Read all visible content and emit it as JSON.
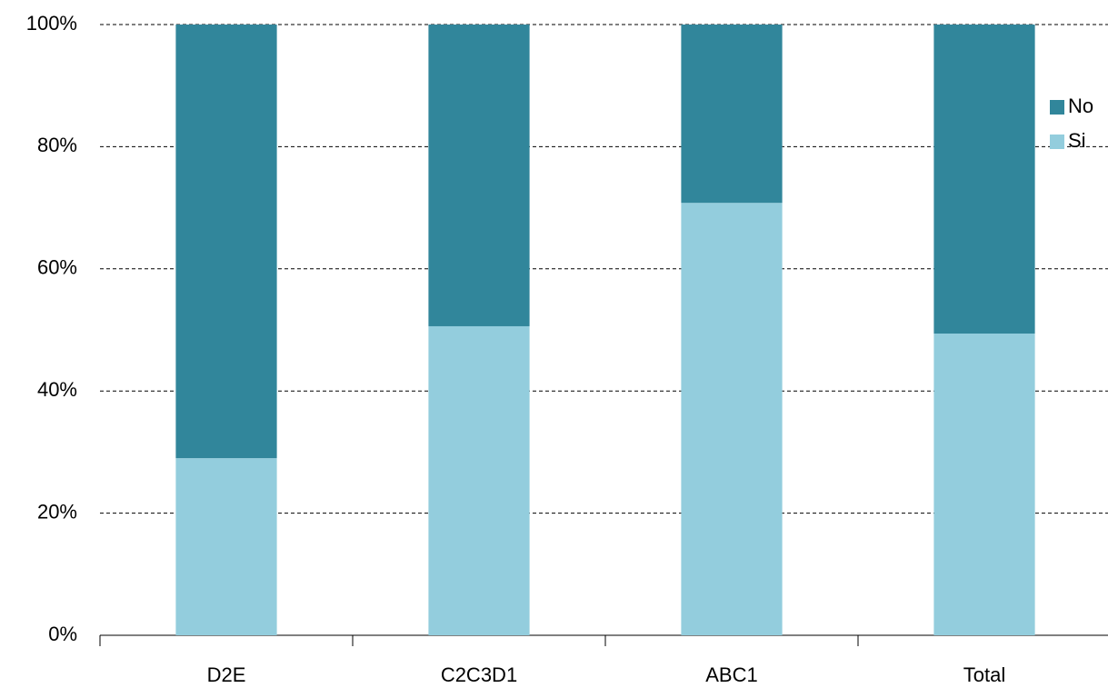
{
  "chart_data": {
    "type": "stacked_bar",
    "categories": [
      "D2E",
      "C2C3D1",
      "ABC1",
      "Total"
    ],
    "series": [
      {
        "name": "Si",
        "color": "#93cddd",
        "values": [
          29.0,
          50.6,
          70.8,
          49.4
        ]
      },
      {
        "name": "No",
        "color": "#31869b",
        "values": [
          71.0,
          49.4,
          29.2,
          50.6
        ]
      }
    ],
    "ylim": [
      0,
      100
    ],
    "yticks": [
      {
        "value": 0,
        "label": "0%"
      },
      {
        "value": 20,
        "label": "20%"
      },
      {
        "value": 40,
        "label": "40%"
      },
      {
        "value": 60,
        "label": "60%"
      },
      {
        "value": 80,
        "label": "80%"
      },
      {
        "value": 100,
        "label": "100%"
      }
    ],
    "grid": true,
    "legend": "right"
  }
}
